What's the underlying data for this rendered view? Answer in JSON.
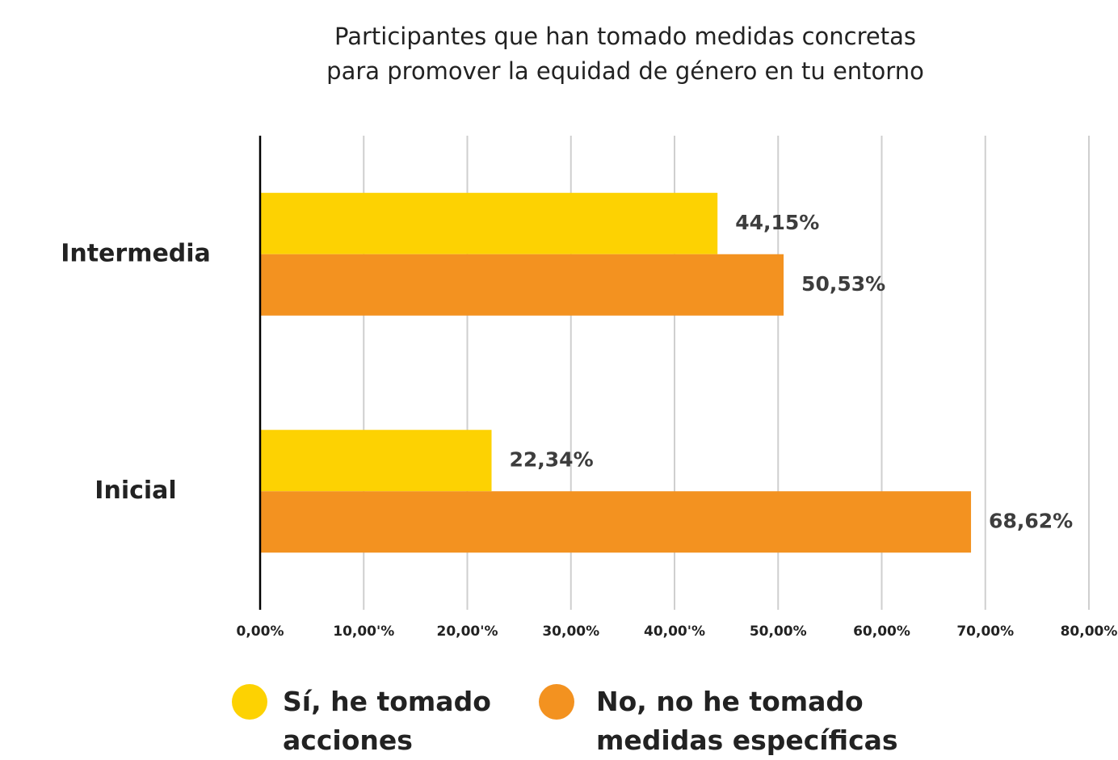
{
  "chart_data": {
    "type": "hbar",
    "title": [
      "Participantes que han tomado medidas concretas",
      "para promover la equidad de género en tu entorno"
    ],
    "categories": [
      "Intermedia",
      "Inicial"
    ],
    "series": [
      {
        "name": "Sí, he tomado acciones",
        "color": "#FDD202",
        "values": [
          44.15,
          22.34
        ],
        "value_labels": [
          "44,15%",
          "22,34%"
        ]
      },
      {
        "name": "No, no he tomado medidas específicas",
        "color": "#F39220",
        "values": [
          50.53,
          68.62
        ],
        "value_labels": [
          "50,53%",
          "68,62%"
        ]
      }
    ],
    "xlim": [
      0,
      80
    ],
    "xticks": [
      {
        "value": 0,
        "label": "0,00%"
      },
      {
        "value": 10,
        "label": "10,00'%"
      },
      {
        "value": 20,
        "label": "20,00'%"
      },
      {
        "value": 30,
        "label": "30,00%"
      },
      {
        "value": 40,
        "label": "40,00'%"
      },
      {
        "value": 50,
        "label": "50,00%"
      },
      {
        "value": 60,
        "label": "60,00%"
      },
      {
        "value": 70,
        "label": "70,00%"
      },
      {
        "value": 80,
        "label": "80,00%"
      }
    ],
    "grid": true
  }
}
